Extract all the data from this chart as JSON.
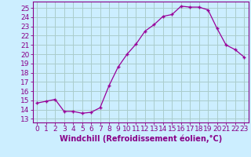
{
  "x": [
    0,
    1,
    2,
    3,
    4,
    5,
    6,
    7,
    8,
    9,
    10,
    11,
    12,
    13,
    14,
    15,
    16,
    17,
    18,
    19,
    20,
    21,
    22,
    23
  ],
  "y": [
    14.7,
    14.9,
    15.1,
    13.8,
    13.8,
    13.6,
    13.7,
    14.2,
    16.6,
    18.6,
    20.0,
    21.1,
    22.5,
    23.2,
    24.1,
    24.3,
    25.2,
    25.1,
    25.1,
    24.8,
    22.8,
    21.0,
    20.5,
    19.7
  ],
  "line_color": "#990099",
  "marker": "+",
  "bg_color": "#cceeff",
  "grid_color": "#aacccc",
  "xlabel": "Windchill (Refroidissement éolien,°C)",
  "ylabel_ticks": [
    13,
    14,
    15,
    16,
    17,
    18,
    19,
    20,
    21,
    22,
    23,
    24,
    25
  ],
  "ylim": [
    12.6,
    25.7
  ],
  "xlim": [
    -0.5,
    23.5
  ],
  "tick_fontsize": 6.5,
  "xlabel_fontsize": 7,
  "axis_color": "#880088"
}
